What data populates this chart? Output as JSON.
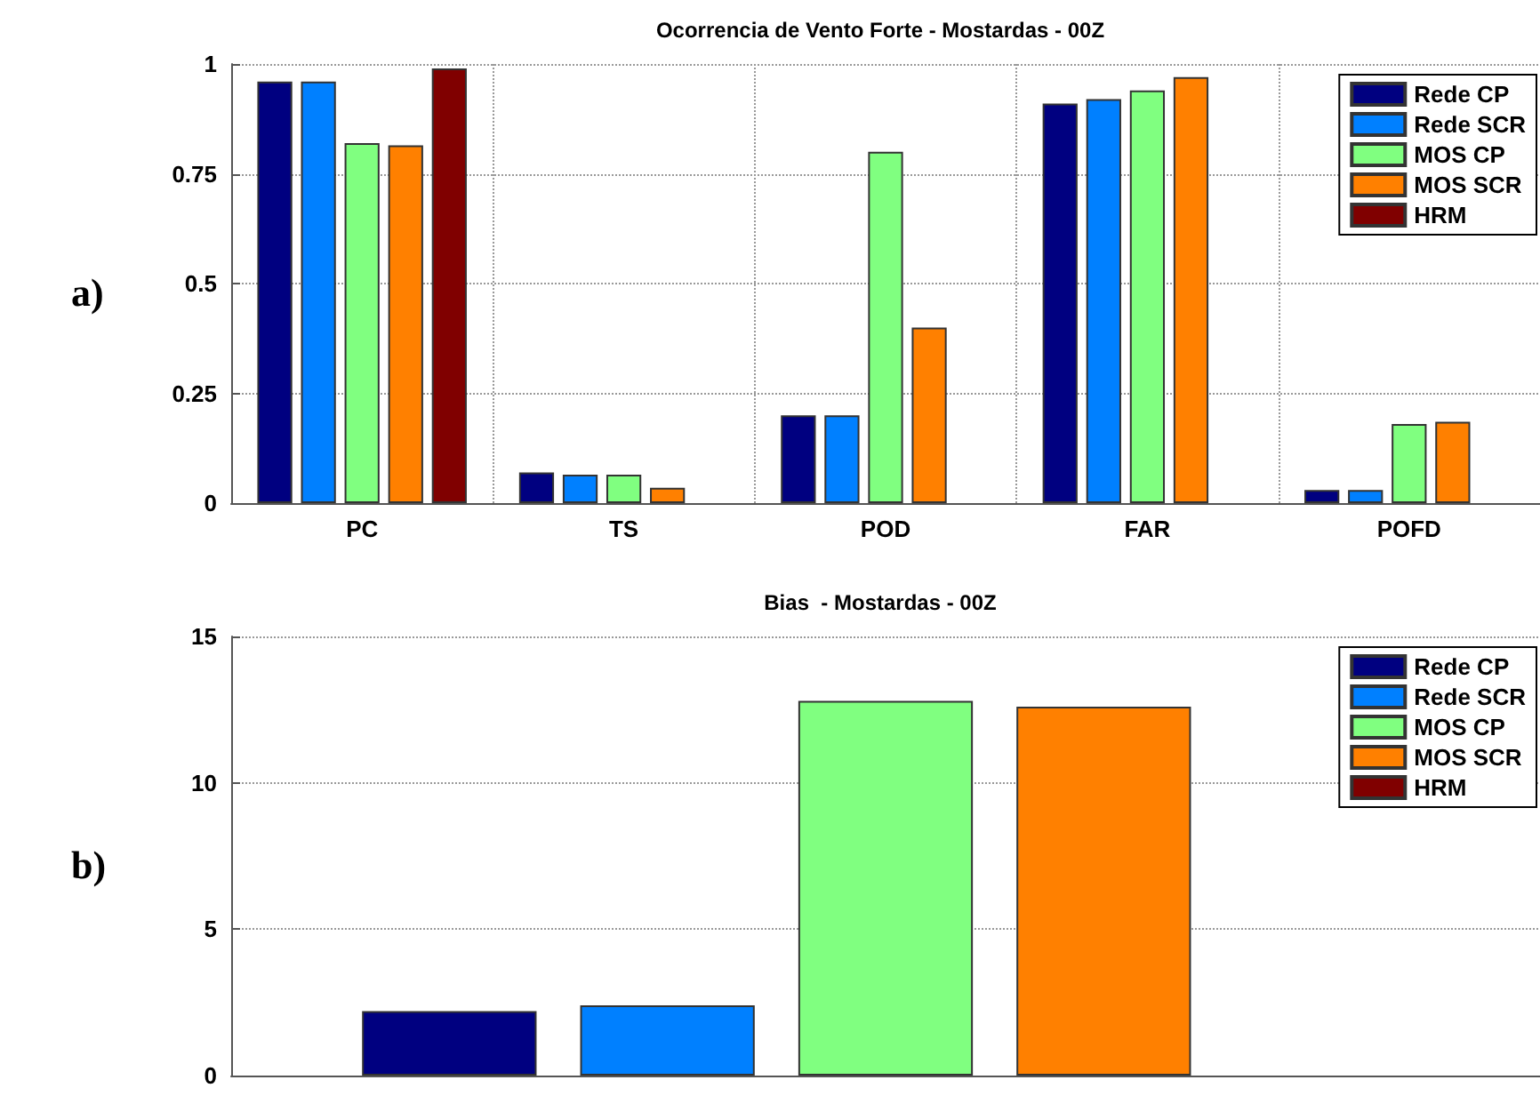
{
  "chart_data": [
    {
      "type": "bar",
      "title": "Ocorrencia de Vento Forte - Mostardas - 00Z",
      "annotations": [
        "a)"
      ],
      "categories": [
        "PC",
        "TS",
        "POD",
        "FAR",
        "POFD"
      ],
      "series": [
        {
          "name": "Rede CP",
          "color": "#000080",
          "values": [
            0.96,
            0.07,
            0.2,
            0.91,
            0.03
          ]
        },
        {
          "name": "Rede SCR",
          "color": "#0080ff",
          "values": [
            0.96,
            0.065,
            0.2,
            0.92,
            0.03
          ]
        },
        {
          "name": "MOS CP",
          "color": "#80ff80",
          "values": [
            0.82,
            0.065,
            0.8,
            0.94,
            0.18
          ]
        },
        {
          "name": "MOS SCR",
          "color": "#ff8000",
          "values": [
            0.815,
            0.035,
            0.4,
            0.97,
            0.185
          ]
        },
        {
          "name": "HRM",
          "color": "#800000",
          "values": [
            0.99,
            null,
            null,
            null,
            null
          ]
        }
      ],
      "ylim": [
        0,
        1
      ],
      "yticks": [
        0,
        0.25,
        0.5,
        0.75,
        1
      ],
      "grid": true,
      "legend": "top right"
    },
    {
      "type": "bar",
      "title": "Bias  - Mostardas - 00Z",
      "annotations": [
        "b)"
      ],
      "categories": [
        null
      ],
      "series": [
        {
          "name": "Rede CP",
          "color": "#000080",
          "values": [
            2.2
          ]
        },
        {
          "name": "Rede SCR",
          "color": "#0080ff",
          "values": [
            2.4
          ]
        },
        {
          "name": "MOS CP",
          "color": "#80ff80",
          "values": [
            12.8
          ]
        },
        {
          "name": "MOS SCR",
          "color": "#ff8000",
          "values": [
            12.6
          ]
        },
        {
          "name": "HRM",
          "color": "#800000",
          "values": [
            null
          ]
        }
      ],
      "ylim": [
        0,
        15
      ],
      "yticks": [
        0,
        5,
        10,
        15
      ],
      "grid": true,
      "legend": "top right"
    }
  ]
}
